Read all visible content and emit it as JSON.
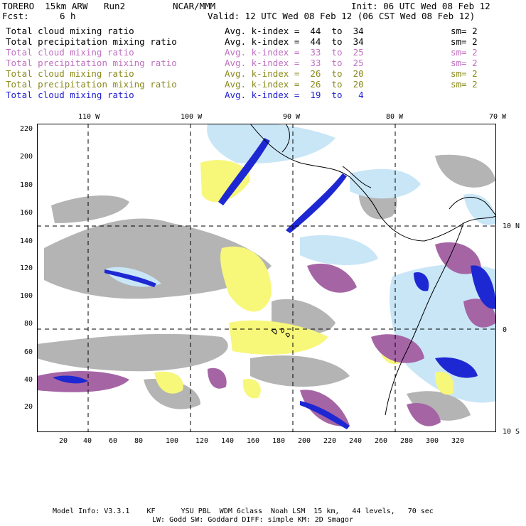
{
  "header": {
    "model": "TORERO  15km ARW   Run2",
    "center": "NCAR/MMM",
    "init": "Init: 06 UTC Wed 08 Feb 12",
    "fcst_label": "Fcst:",
    "fcst_value": "6 h",
    "valid": "Valid: 12 UTC Wed 08 Feb 12 (06 CST Wed 08 Feb 12)"
  },
  "legend": [
    {
      "field": "Total cloud mixing ratio",
      "range": "Avg. k-index =  44  to  34",
      "sm": "sm= 2",
      "color": "#000000"
    },
    {
      "field": "Total precipitation mixing ratio",
      "range": "Avg. k-index =  44  to  34",
      "sm": "sm= 2",
      "color": "#000000"
    },
    {
      "field": "Total cloud mixing ratio",
      "range": "Avg. k-index =  33  to  25",
      "sm": "sm= 2",
      "color": "#c070c0"
    },
    {
      "field": "Total precipitation mixing ratio",
      "range": "Avg. k-index =  33  to  25",
      "sm": "sm= 2",
      "color": "#c070c0"
    },
    {
      "field": "Total cloud mixing ratio",
      "range": "Avg. k-index =  26  to  20",
      "sm": "sm= 2",
      "color": "#8a8a1e"
    },
    {
      "field": "Total precipitation mixing ratio",
      "range": "Avg. k-index =  26  to  20",
      "sm": "sm= 2",
      "color": "#8a8a1e"
    },
    {
      "field": "Total cloud mixing ratio",
      "range": "Avg. k-index =  19  to   4",
      "sm": "",
      "color": "#1e1ed2"
    }
  ],
  "map": {
    "top_labels": [
      "110 W",
      "100 W",
      "90 W",
      "80 W",
      "70 W"
    ],
    "right_labels": [
      "10 N",
      "0",
      "10 S"
    ],
    "y_ticks": [
      "220",
      "200",
      "180",
      "160",
      "140",
      "120",
      "100",
      "80",
      "60",
      "40",
      "20"
    ],
    "x_ticks": [
      "20",
      "40",
      "60",
      "80",
      "100",
      "120",
      "140",
      "160",
      "180",
      "200",
      "220",
      "240",
      "260",
      "280",
      "300",
      "320"
    ],
    "colors": {
      "gray": "#b4b4b4",
      "yellow": "#f7f77a",
      "purple": "#a565a5",
      "lightblue": "#c9e6f7",
      "blue": "#1e28d2",
      "coast": "#000000"
    }
  },
  "footer": {
    "line1": "Model Info: V3.3.1    KF      YSU PBL  WDM 6class  Noah LSM  15 km,   44 levels,   70 sec",
    "line2": "LW: Godd SW: Goddard DIFF: simple KM: 2D Smagor"
  }
}
